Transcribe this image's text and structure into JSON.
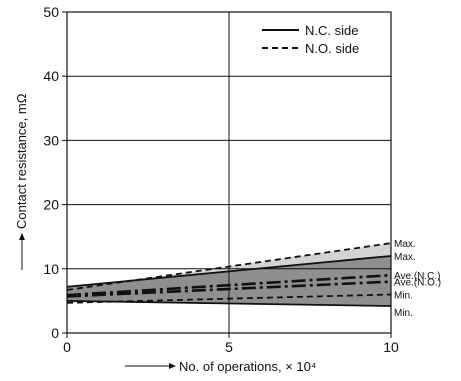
{
  "chart_data": {
    "type": "line",
    "title": "",
    "xlabel": "No. of operations, × 10⁴",
    "ylabel": "Contact resistance, mΩ",
    "xlim": [
      0,
      10
    ],
    "ylim": [
      0,
      50
    ],
    "xticks": [
      0,
      5,
      10
    ],
    "yticks": [
      0,
      10,
      20,
      30,
      40,
      50
    ],
    "grid": "major gridlines at x = 5 and y = 10, 20, 30, 40",
    "legend": {
      "placement": "top-right",
      "entries": [
        {
          "label": "N.C. side",
          "style": "solid"
        },
        {
          "label": "N.O. side",
          "style": "dashed"
        }
      ]
    },
    "series": [
      {
        "name": "Max.",
        "side": "N.O.",
        "style": "dashed",
        "x": [
          0,
          10
        ],
        "y": [
          6.7,
          14.0
        ]
      },
      {
        "name": "Max.",
        "side": "N.C.",
        "style": "solid",
        "x": [
          0,
          10
        ],
        "y": [
          7.2,
          12.0
        ]
      },
      {
        "name": "Ave.(N.C.)",
        "side": "N.C.",
        "style": "dash-dot",
        "x": [
          0,
          10
        ],
        "y": [
          5.9,
          9.0
        ]
      },
      {
        "name": "Ave.(N.O.)",
        "side": "N.O.",
        "style": "dash-dot",
        "x": [
          0,
          10
        ],
        "y": [
          5.7,
          8.0
        ]
      },
      {
        "name": "Min.",
        "side": "N.O.",
        "style": "dashed",
        "x": [
          0,
          10
        ],
        "y": [
          4.7,
          6.0
        ]
      },
      {
        "name": "Min.",
        "side": "N.C.",
        "style": "solid",
        "x": [
          0,
          10
        ],
        "y": [
          5.0,
          4.2
        ]
      }
    ],
    "bands": [
      {
        "side": "N.O.",
        "upper_series": 0,
        "lower_series": 4,
        "fill": "#d3d3d3"
      },
      {
        "side": "N.C.",
        "upper_series": 1,
        "lower_series": 5,
        "fill": "#8f8f8f"
      }
    ]
  }
}
